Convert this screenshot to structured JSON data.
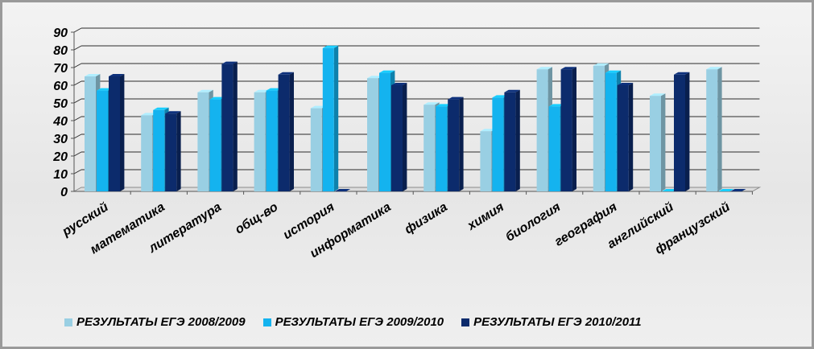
{
  "chart_data": {
    "type": "bar",
    "categories": [
      "русский",
      "математика",
      "литература",
      "общ-во",
      "история",
      "информатика",
      "физика",
      "химия",
      "биология",
      "география",
      "английский",
      "французский"
    ],
    "series": [
      {
        "name": "РЕЗУЛЬТАТЫ ЕГЭ 2008/2009",
        "color": "#99cfe3",
        "values": [
          65,
          43,
          56,
          56,
          47,
          64,
          49,
          34,
          69,
          71,
          54,
          69
        ]
      },
      {
        "name": "РЕЗУЛЬТАТЫ ЕГЭ 2009/2010",
        "color": "#14b3ef",
        "values": [
          57,
          46,
          52,
          57,
          81,
          67,
          48,
          53,
          48,
          67,
          0,
          0
        ]
      },
      {
        "name": "РЕЗУЛЬТАТЫ ЕГЭ 2010/2011",
        "color": "#0c2b6c",
        "values": [
          65,
          44,
          72,
          66,
          0,
          60,
          52,
          56,
          69,
          60,
          66,
          0
        ]
      }
    ],
    "yticks": [
      0,
      10,
      20,
      30,
      40,
      50,
      60,
      70,
      80,
      90
    ],
    "ylim": [
      0,
      90
    ],
    "grid": true,
    "legend_position": "bottom"
  }
}
